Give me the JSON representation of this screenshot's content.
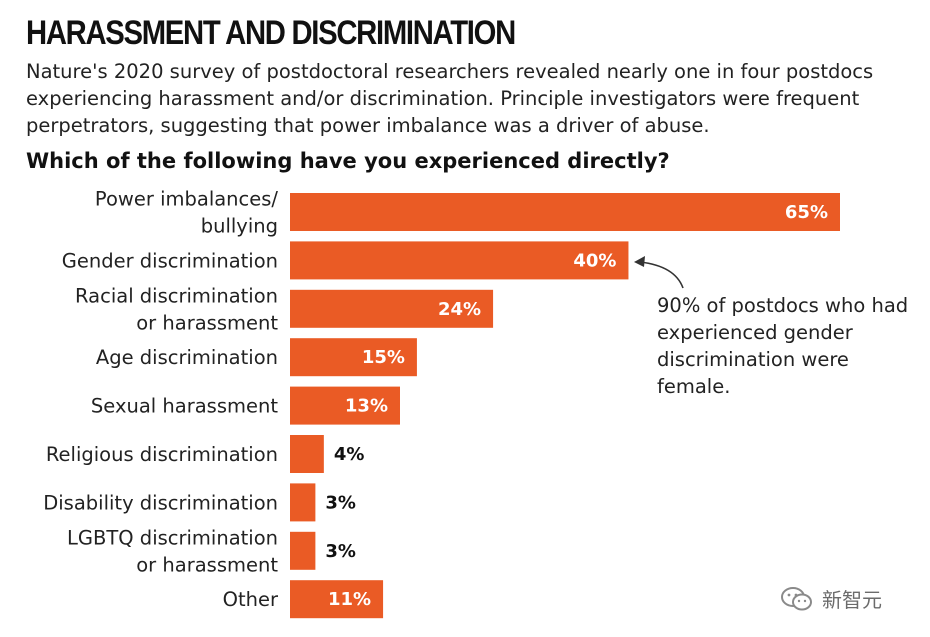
{
  "header": {
    "title": "HARASSMENT AND DISCRIMINATION",
    "subtitle": "Nature's 2020 survey of postdoctoral researchers revealed nearly one in four postdocs experiencing harassment and/or discrimination. Principle investigators were frequent perpetrators, suggesting that power imbalance was a driver of abuse.",
    "question": "Which of the following have you experienced directly?"
  },
  "annotation": {
    "text": "90% of postdocs who had experienced gender discrimination were female."
  },
  "watermark": {
    "text": "新智元"
  },
  "colors": {
    "bar": "#ea5b25",
    "arrow": "#333333"
  },
  "chart_data": {
    "type": "bar",
    "orientation": "horizontal",
    "title": "Which of the following have you experienced directly?",
    "categories": [
      [
        "Power imbalances/",
        "bullying"
      ],
      [
        "Gender discrimination"
      ],
      [
        "Racial discrimination",
        "or harassment"
      ],
      [
        "Age discrimination"
      ],
      [
        "Sexual harassment"
      ],
      [
        "Religious discrimination"
      ],
      [
        "Disability discrimination"
      ],
      [
        "LGBTQ discrimination",
        "or harassment"
      ],
      [
        "Other"
      ]
    ],
    "values": [
      65,
      40,
      24,
      15,
      13,
      4,
      3,
      3,
      11
    ],
    "value_labels": [
      "65%",
      "40%",
      "24%",
      "15%",
      "13%",
      "4%",
      "3%",
      "3%",
      "11%"
    ],
    "unit": "%",
    "xlim": [
      0,
      65
    ],
    "grid": false
  }
}
